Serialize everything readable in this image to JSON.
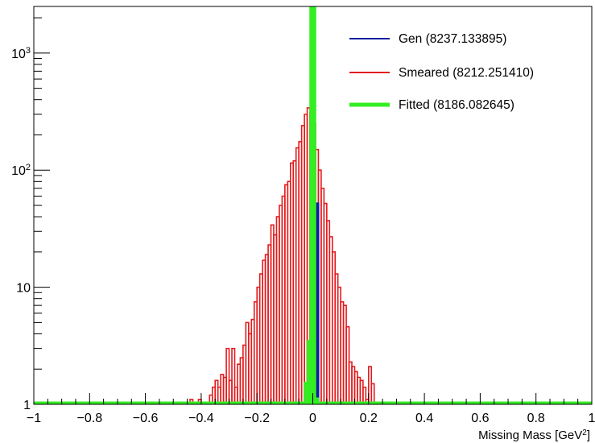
{
  "chart_data": {
    "type": "line",
    "title": "",
    "xlabel": "Missing Mass [GeV",
    "xlabel_superscript": "2",
    "xlabel_suffix": "]",
    "ylabel": "",
    "xlim": [
      -1,
      1
    ],
    "ylim": [
      1,
      2500
    ],
    "yscale": "log",
    "grid": false,
    "legend_position": "top-right",
    "x_tick_labels": [
      "−1",
      "−0.8",
      "−0.6",
      "−0.4",
      "−0.2",
      "0",
      "0.2",
      "0.4",
      "0.6",
      "0.8",
      "1"
    ],
    "x_tick_values": [
      -1,
      -0.8,
      -0.6,
      -0.4,
      -0.2,
      0,
      0.2,
      0.4,
      0.6,
      0.8,
      1
    ],
    "y_tick_labels": [
      {
        "value": 1,
        "base": "1",
        "exp": ""
      },
      {
        "value": 10,
        "base": "10",
        "exp": ""
      },
      {
        "value": 100,
        "base": "10",
        "exp": "2"
      },
      {
        "value": 1000,
        "base": "10",
        "exp": "3"
      }
    ],
    "series": [
      {
        "name": "Gen (8237.133895)",
        "color": "#0a1fa0",
        "bins": [
          {
            "x0": 0.015,
            "x1": 0.02,
            "y": 52
          }
        ]
      },
      {
        "name": "Smeared (8212.251410)",
        "color": "#e41a1c",
        "bins": [
          {
            "x0": -0.44,
            "x1": -0.43,
            "y": 1.1
          },
          {
            "x0": -0.41,
            "x1": -0.4,
            "y": 1.1
          },
          {
            "x0": -0.37,
            "x1": -0.36,
            "y": 1.2
          },
          {
            "x0": -0.36,
            "x1": -0.35,
            "y": 1.4
          },
          {
            "x0": -0.35,
            "x1": -0.34,
            "y": 1.6
          },
          {
            "x0": -0.34,
            "x1": -0.33,
            "y": 1.4
          },
          {
            "x0": -0.33,
            "x1": -0.32,
            "y": 1.8
          },
          {
            "x0": -0.32,
            "x1": -0.31,
            "y": 1.7
          },
          {
            "x0": -0.31,
            "x1": -0.3,
            "y": 3.0
          },
          {
            "x0": -0.3,
            "x1": -0.29,
            "y": 1.6
          },
          {
            "x0": -0.29,
            "x1": -0.28,
            "y": 3.0
          },
          {
            "x0": -0.28,
            "x1": -0.27,
            "y": 1.4
          },
          {
            "x0": -0.27,
            "x1": -0.26,
            "y": 2.2
          },
          {
            "x0": -0.26,
            "x1": -0.25,
            "y": 2.5
          },
          {
            "x0": -0.25,
            "x1": -0.24,
            "y": 3.2
          },
          {
            "x0": -0.24,
            "x1": -0.23,
            "y": 5.0
          },
          {
            "x0": -0.23,
            "x1": -0.22,
            "y": 4.0
          },
          {
            "x0": -0.22,
            "x1": -0.21,
            "y": 5.3
          },
          {
            "x0": -0.21,
            "x1": -0.2,
            "y": 7.5
          },
          {
            "x0": -0.2,
            "x1": -0.19,
            "y": 10
          },
          {
            "x0": -0.19,
            "x1": -0.18,
            "y": 13
          },
          {
            "x0": -0.18,
            "x1": -0.17,
            "y": 17
          },
          {
            "x0": -0.17,
            "x1": -0.16,
            "y": 19
          },
          {
            "x0": -0.16,
            "x1": -0.15,
            "y": 23
          },
          {
            "x0": -0.15,
            "x1": -0.14,
            "y": 34
          },
          {
            "x0": -0.14,
            "x1": -0.13,
            "y": 28
          },
          {
            "x0": -0.13,
            "x1": -0.12,
            "y": 40
          },
          {
            "x0": -0.12,
            "x1": -0.11,
            "y": 50
          },
          {
            "x0": -0.11,
            "x1": -0.1,
            "y": 60
          },
          {
            "x0": -0.1,
            "x1": -0.09,
            "y": 75
          },
          {
            "x0": -0.09,
            "x1": -0.08,
            "y": 80
          },
          {
            "x0": -0.08,
            "x1": -0.07,
            "y": 115
          },
          {
            "x0": -0.07,
            "x1": -0.06,
            "y": 120
          },
          {
            "x0": -0.06,
            "x1": -0.05,
            "y": 155
          },
          {
            "x0": -0.05,
            "x1": -0.04,
            "y": 175
          },
          {
            "x0": -0.04,
            "x1": -0.03,
            "y": 240
          },
          {
            "x0": -0.03,
            "x1": -0.02,
            "y": 300
          },
          {
            "x0": -0.02,
            "x1": -0.01,
            "y": 340
          },
          {
            "x0": -0.01,
            "x1": 0.0,
            "y": 310
          },
          {
            "x0": 0.0,
            "x1": 0.01,
            "y": 250
          },
          {
            "x0": 0.01,
            "x1": 0.02,
            "y": 150
          },
          {
            "x0": 0.02,
            "x1": 0.03,
            "y": 100
          },
          {
            "x0": 0.03,
            "x1": 0.04,
            "y": 70
          },
          {
            "x0": 0.04,
            "x1": 0.05,
            "y": 52
          },
          {
            "x0": 0.05,
            "x1": 0.06,
            "y": 37
          },
          {
            "x0": 0.06,
            "x1": 0.07,
            "y": 27
          },
          {
            "x0": 0.07,
            "x1": 0.08,
            "y": 20
          },
          {
            "x0": 0.08,
            "x1": 0.09,
            "y": 13
          },
          {
            "x0": 0.09,
            "x1": 0.1,
            "y": 10
          },
          {
            "x0": 0.1,
            "x1": 0.11,
            "y": 7.5
          },
          {
            "x0": 0.11,
            "x1": 0.12,
            "y": 7.0
          },
          {
            "x0": 0.12,
            "x1": 0.13,
            "y": 4.6
          },
          {
            "x0": 0.13,
            "x1": 0.14,
            "y": 2.3
          },
          {
            "x0": 0.14,
            "x1": 0.15,
            "y": 2.1
          },
          {
            "x0": 0.15,
            "x1": 0.16,
            "y": 1.9
          },
          {
            "x0": 0.16,
            "x1": 0.17,
            "y": 1.7
          },
          {
            "x0": 0.17,
            "x1": 0.18,
            "y": 1.6
          },
          {
            "x0": 0.18,
            "x1": 0.19,
            "y": 1.4
          },
          {
            "x0": 0.19,
            "x1": 0.2,
            "y": 1.1
          },
          {
            "x0": 0.2,
            "x1": 0.21,
            "y": 2.1
          },
          {
            "x0": 0.21,
            "x1": 0.22,
            "y": 1.5
          }
        ]
      },
      {
        "name": "Fitted (8186.082645)",
        "color": "#33ee22",
        "bins": [
          {
            "x0": -0.025,
            "x1": -0.015,
            "y": 1.5
          },
          {
            "x0": -0.015,
            "x1": -0.005,
            "y": 3.4
          },
          {
            "x0": -0.005,
            "x1": 0.005,
            "y": 2500
          },
          {
            "x0": 0.005,
            "x1": 0.015,
            "y": 1.1
          }
        ]
      }
    ]
  }
}
